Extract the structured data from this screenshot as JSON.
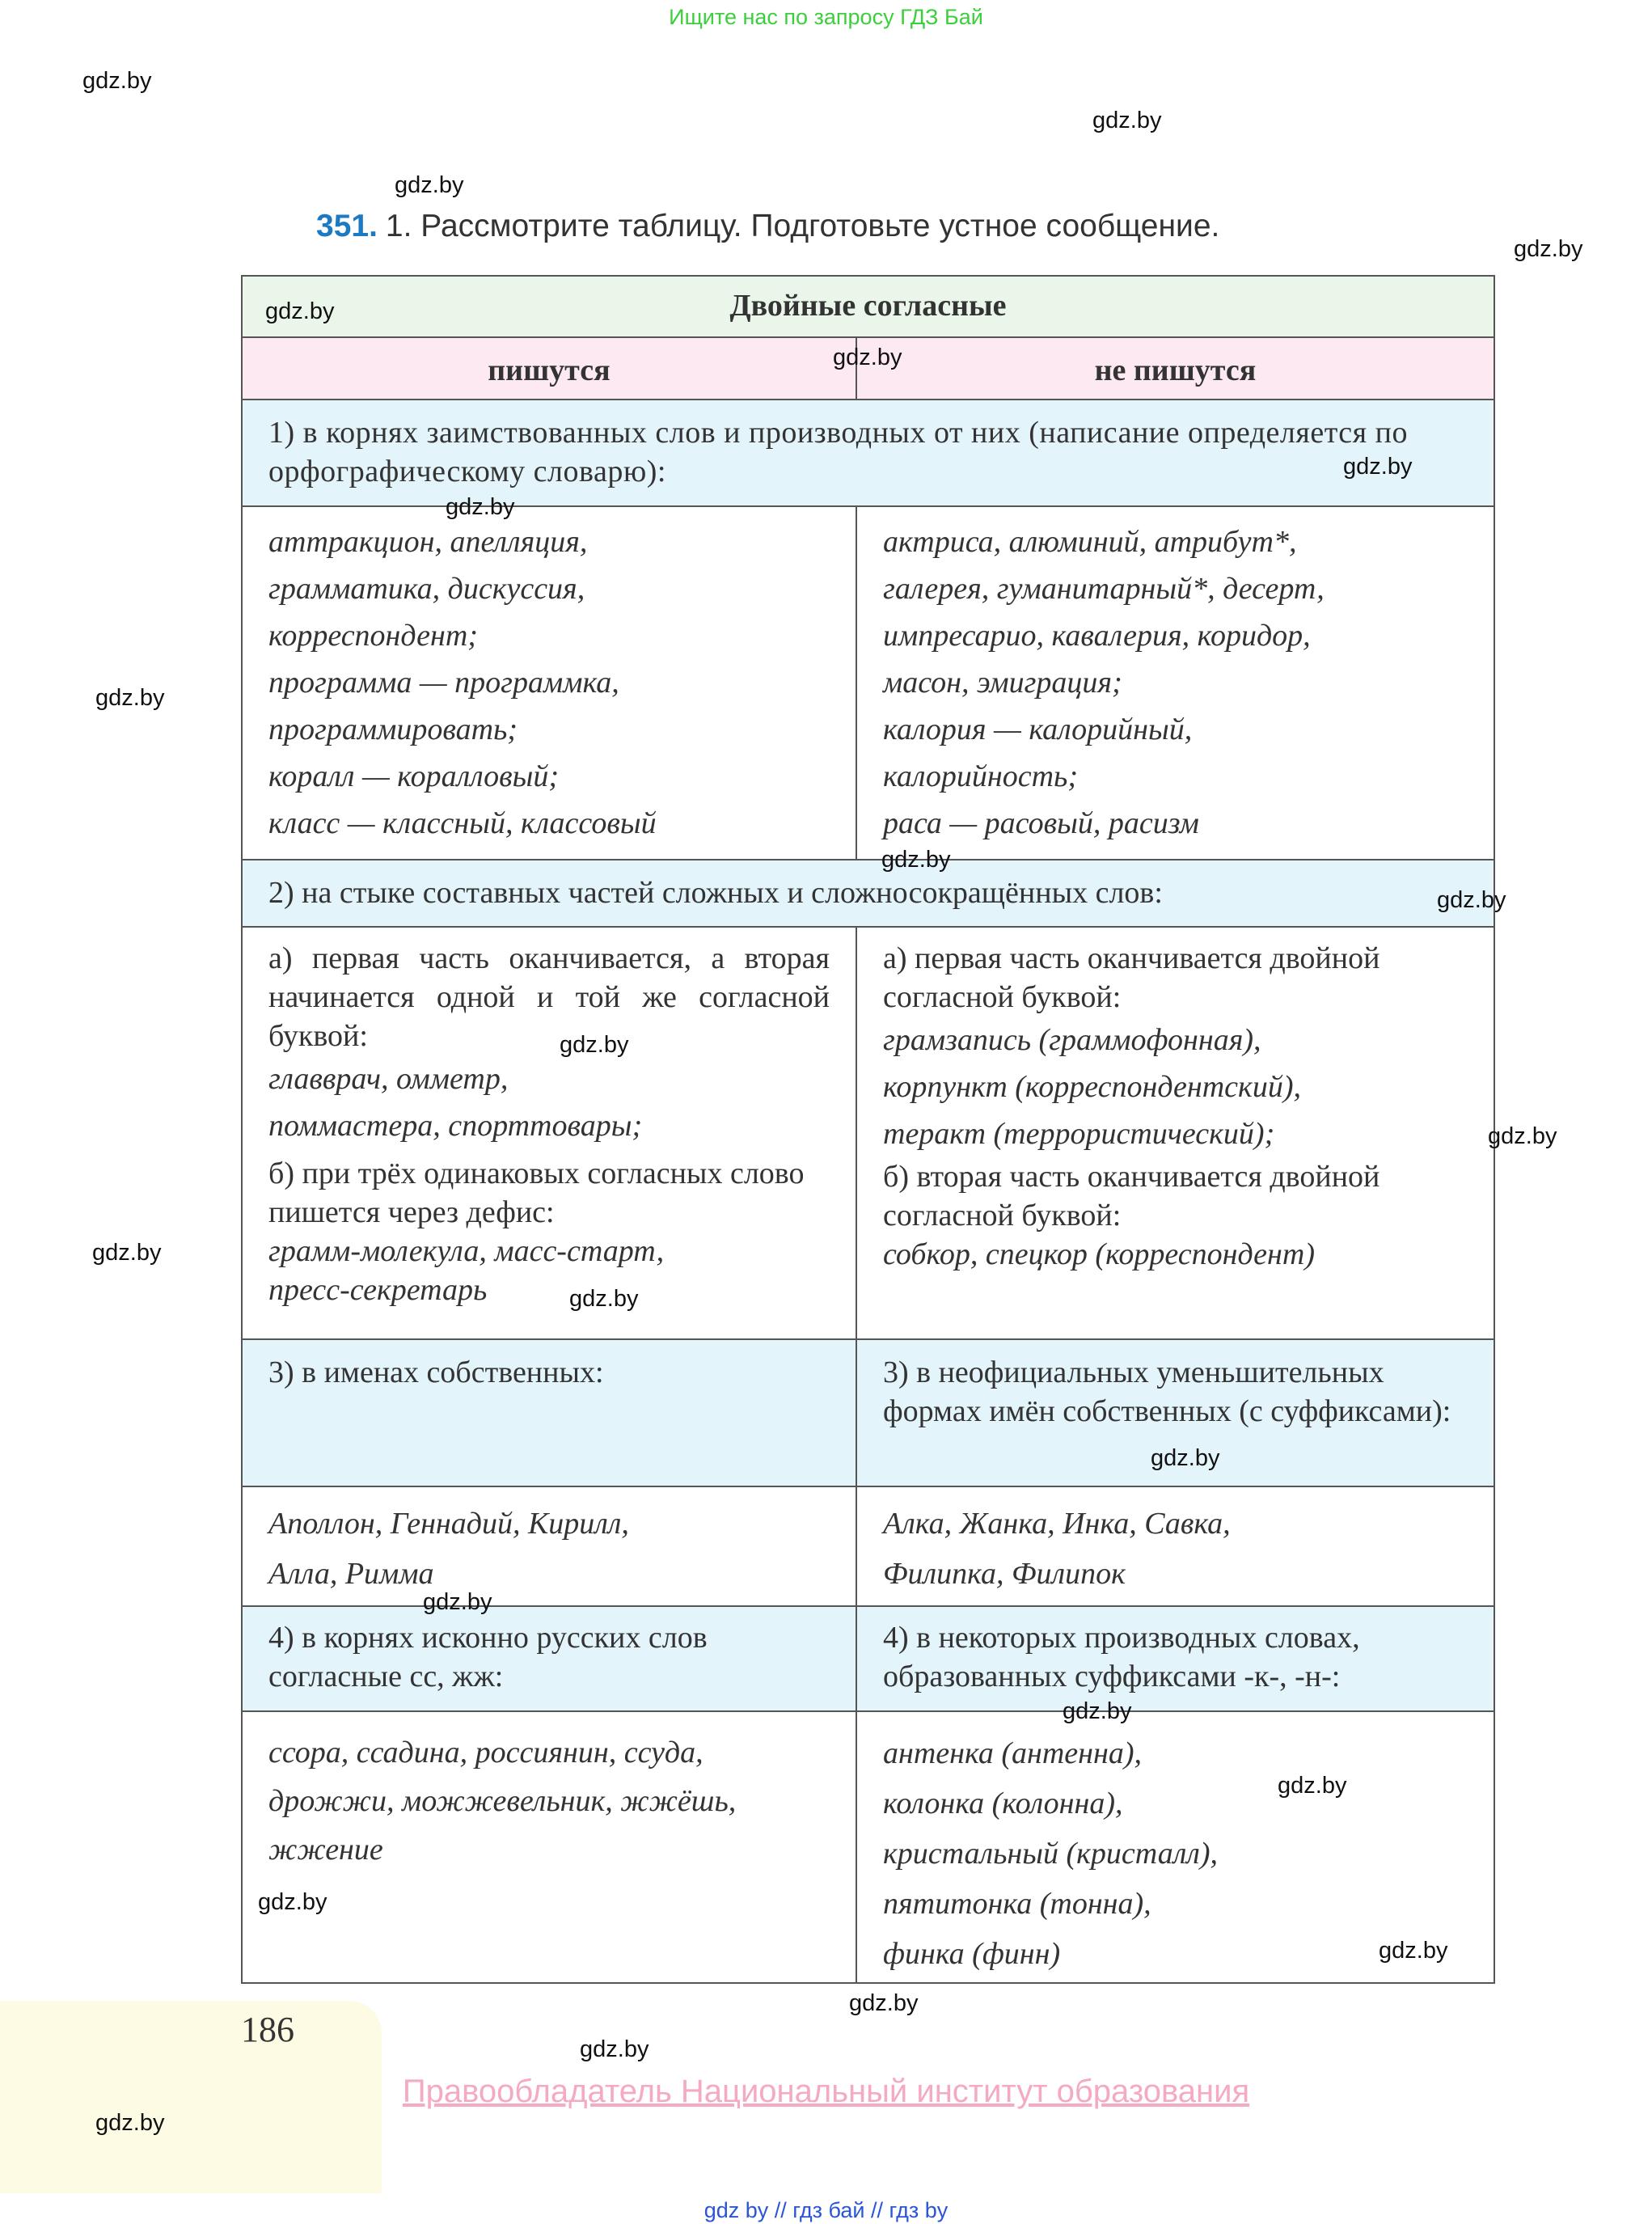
{
  "banner": "Ищите нас по запросу ГДЗ Бай",
  "watermark": "gdz.by",
  "task": {
    "number": "351.",
    "text": "1. Рассмотрите таблицу. Подготовьте устное сообщение."
  },
  "table": {
    "title": "Двойные согласные",
    "col_left": "пишутся",
    "col_right": "не пишутся",
    "section1": {
      "heading": "1) в корнях заимствованных слов и производных от них (написание определяется по орфографическому словарю):",
      "left": [
        "аттракцион, апелляция,",
        "грамматика, дискуссия,",
        "корреспондент;",
        "программа — программка,",
        "программировать;",
        "коралл — коралловый;",
        "класс — классный, классовый"
      ],
      "right": [
        "актриса, алюминий, атрибут*,",
        "галерея, гуманитарный*, десерт,",
        "импресарио, кавалерия, коридор,",
        "масон, эмиграция;",
        "калория — калорийный,",
        "калорийность;",
        "раса — расовый, расизм"
      ]
    },
    "section2": {
      "heading": "2) на стыке составных частей сложных и сложносокращённых слов:",
      "left_a": "а) первая часть оканчивается, а вторая начинается одной и той же согласной буквой:",
      "left_a_examples": [
        "главврач, омметр,",
        "поммастера, спорттовары;"
      ],
      "left_b": "б) при трёх одинаковых согласных слово пишется через дефис:",
      "left_b_examples": [
        "грамм-молекула, масс-старт,",
        "пресс-секретарь"
      ],
      "right_a": "а) первая часть оканчивается двойной согласной буквой:",
      "right_a_examples": [
        "грамзапись (граммофонная),",
        "корпункт (корреспондентский),",
        "теракт (террористический);"
      ],
      "right_b": "б) вторая часть оканчивается двойной согласной буквой:",
      "right_b_examples": [
        "собкор, спецкор (корреспондент)"
      ]
    },
    "section3": {
      "left_heading": "3) в именах собственных:",
      "right_heading": "3) в неофициальных уменьшительных формах имён собственных (с суффиксами):",
      "left": [
        "Аполлон, Геннадий, Кирилл,",
        "Алла, Римма"
      ],
      "right": [
        "Алка, Жанка, Инка, Савка,",
        "Филипка, Филипок"
      ]
    },
    "section4": {
      "left_heading": "4) в корнях исконно русских слов согласные сс, жж:",
      "right_heading": "4) в некоторых производных словах, образованных суффиксами -к-, -н-:",
      "left": [
        "ссора, ссадина, россиянин, ссуда,",
        "дрожжи, можжевельник, жжёшь,",
        "жжение"
      ],
      "right": [
        "антенка (антенна),",
        "колонка (колонна),",
        "кристальный (кристалл),",
        "пятитонка (тонна),",
        "финка (финн)"
      ]
    }
  },
  "page_number": "186",
  "copyright": "Правообладатель Национальный институт образования",
  "footer": "gdz by  //  гдз бай  //  гдз by"
}
